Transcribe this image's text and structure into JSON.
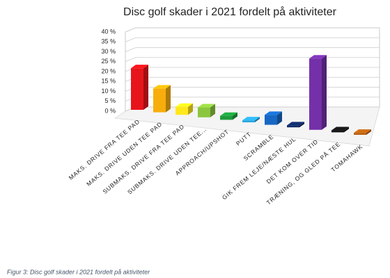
{
  "chart_data": {
    "type": "bar3d",
    "title": "Disc golf skader i 2021 fordelt på aktiviteter",
    "categories": [
      "MAKS. DRIVE FRA TEE PAD",
      "MAKS. DRIVE UDEN TEE PAD",
      "SUBMAKS. DRIVE FRA TEE PAD",
      "SUBMAKS. DRIVE UDEN TEE...",
      "APPROACH/UPSHOT",
      "PUTT",
      "SCRAMBLE",
      "GIK FREM LEJE/NÆSTE HUL",
      "DET KOM OVER TID",
      "TRÆNING, OG GLED PÅ TEE",
      "TOMAHAWK"
    ],
    "values": [
      21,
      12,
      4,
      5,
      2,
      1,
      5,
      1,
      36,
      1,
      1
    ],
    "colors": [
      "#e8141b",
      "#f7ae0c",
      "#ffe81a",
      "#8cc63f",
      "#1c9b3c",
      "#2aa6e0",
      "#1768c4",
      "#0f2a66",
      "#7430a8",
      "#151515",
      "#b8600f"
    ],
    "ylim": [
      0,
      40
    ],
    "yticks": [
      {
        "value": 0,
        "label": "0 %"
      },
      {
        "value": 5,
        "label": "5 %"
      },
      {
        "value": 10,
        "label": "10 %"
      },
      {
        "value": 15,
        "label": "15 %"
      },
      {
        "value": 20,
        "label": "20 %"
      },
      {
        "value": 25,
        "label": "25 %"
      },
      {
        "value": 30,
        "label": "30 %"
      },
      {
        "value": 35,
        "label": "35 %"
      },
      {
        "value": 40,
        "label": "40 %"
      }
    ],
    "grid": true
  },
  "caption": "Figur 3: Disc golf skader i 2021 fordelt på aktiviteter"
}
